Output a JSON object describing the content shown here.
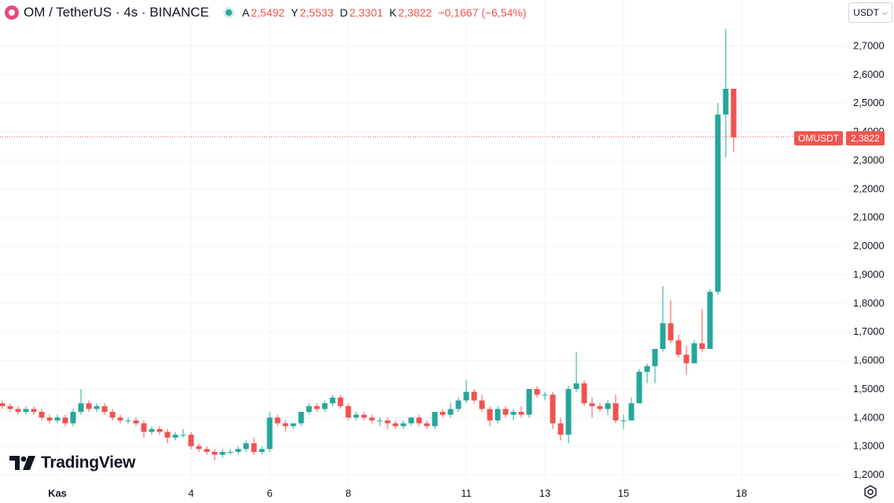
{
  "header": {
    "title": "OM / TetherUS · 4s · BINANCE",
    "ohlc": {
      "open_label": "A",
      "open": "2,5492",
      "high_label": "Y",
      "high": "2,5533",
      "low_label": "D",
      "low": "2,3301",
      "close_label": "K",
      "close": "2,3822",
      "change": "−0,1667 (−6,54%)"
    }
  },
  "currency_button": {
    "label": "USDT",
    "icon": "chevron-down-icon"
  },
  "price_tag": {
    "symbol": "OMUSDT",
    "value": "2,3822"
  },
  "branding": {
    "logo_text": "TradingView"
  },
  "colors": {
    "up": "#26a69a",
    "down": "#ef5350",
    "grid": "#f0f3fa",
    "text": "#131722"
  },
  "chart_data": {
    "type": "candlestick",
    "ylim": [
      1.17,
      2.8
    ],
    "last_price": 2.3822,
    "y_ticks": [
      {
        "value": 2.7,
        "label": "2,7000"
      },
      {
        "value": 2.6,
        "label": "2,6000"
      },
      {
        "value": 2.5,
        "label": "2,5000"
      },
      {
        "value": 2.4,
        "label": "2,4000"
      },
      {
        "value": 2.3,
        "label": "2,3000"
      },
      {
        "value": 2.2,
        "label": "2,2000"
      },
      {
        "value": 2.1,
        "label": "2,1000"
      },
      {
        "value": 2.0,
        "label": "2,0000"
      },
      {
        "value": 1.9,
        "label": "1,9000"
      },
      {
        "value": 1.8,
        "label": "1,8000"
      },
      {
        "value": 1.7,
        "label": "1,7000"
      },
      {
        "value": 1.6,
        "label": "1,6000"
      },
      {
        "value": 1.5,
        "label": "1,5000"
      },
      {
        "value": 1.4,
        "label": "1,4000"
      },
      {
        "value": 1.3,
        "label": "1,3000"
      },
      {
        "value": 1.2,
        "label": "1,2000"
      }
    ],
    "x_ticks": [
      {
        "index": 7,
        "label": "Kas"
      },
      {
        "index": 24,
        "label": "4"
      },
      {
        "index": 34,
        "label": "6"
      },
      {
        "index": 44,
        "label": "8"
      },
      {
        "index": 59,
        "label": "11"
      },
      {
        "index": 69,
        "label": "13"
      },
      {
        "index": 79,
        "label": "15"
      },
      {
        "index": 94,
        "label": "18"
      }
    ],
    "candles": [
      [
        1.45,
        1.46,
        1.43,
        1.44
      ],
      [
        1.44,
        1.45,
        1.42,
        1.43
      ],
      [
        1.43,
        1.44,
        1.41,
        1.42
      ],
      [
        1.42,
        1.44,
        1.41,
        1.43
      ],
      [
        1.43,
        1.44,
        1.41,
        1.42
      ],
      [
        1.42,
        1.43,
        1.39,
        1.4
      ],
      [
        1.4,
        1.41,
        1.38,
        1.39
      ],
      [
        1.39,
        1.41,
        1.38,
        1.4
      ],
      [
        1.4,
        1.41,
        1.37,
        1.38
      ],
      [
        1.38,
        1.43,
        1.37,
        1.42
      ],
      [
        1.42,
        1.5,
        1.41,
        1.45
      ],
      [
        1.45,
        1.46,
        1.42,
        1.43
      ],
      [
        1.43,
        1.45,
        1.42,
        1.44
      ],
      [
        1.44,
        1.45,
        1.41,
        1.42
      ],
      [
        1.42,
        1.43,
        1.39,
        1.4
      ],
      [
        1.4,
        1.41,
        1.38,
        1.39
      ],
      [
        1.39,
        1.4,
        1.38,
        1.39
      ],
      [
        1.39,
        1.4,
        1.37,
        1.38
      ],
      [
        1.38,
        1.39,
        1.33,
        1.35
      ],
      [
        1.35,
        1.37,
        1.34,
        1.36
      ],
      [
        1.36,
        1.37,
        1.34,
        1.35
      ],
      [
        1.35,
        1.36,
        1.31,
        1.33
      ],
      [
        1.33,
        1.35,
        1.32,
        1.34
      ],
      [
        1.34,
        1.36,
        1.33,
        1.34
      ],
      [
        1.34,
        1.35,
        1.29,
        1.3
      ],
      [
        1.3,
        1.31,
        1.28,
        1.29
      ],
      [
        1.29,
        1.3,
        1.27,
        1.28
      ],
      [
        1.28,
        1.29,
        1.25,
        1.27
      ],
      [
        1.27,
        1.29,
        1.26,
        1.28
      ],
      [
        1.28,
        1.29,
        1.27,
        1.28
      ],
      [
        1.28,
        1.3,
        1.27,
        1.29
      ],
      [
        1.29,
        1.32,
        1.28,
        1.31
      ],
      [
        1.31,
        1.33,
        1.27,
        1.28
      ],
      [
        1.28,
        1.3,
        1.27,
        1.29
      ],
      [
        1.29,
        1.42,
        1.28,
        1.4
      ],
      [
        1.4,
        1.41,
        1.37,
        1.38
      ],
      [
        1.38,
        1.39,
        1.35,
        1.37
      ],
      [
        1.37,
        1.38,
        1.36,
        1.38
      ],
      [
        1.38,
        1.42,
        1.37,
        1.42
      ],
      [
        1.42,
        1.45,
        1.41,
        1.44
      ],
      [
        1.44,
        1.45,
        1.42,
        1.43
      ],
      [
        1.43,
        1.46,
        1.42,
        1.45
      ],
      [
        1.45,
        1.48,
        1.44,
        1.47
      ],
      [
        1.47,
        1.48,
        1.43,
        1.44
      ],
      [
        1.44,
        1.45,
        1.39,
        1.4
      ],
      [
        1.4,
        1.42,
        1.39,
        1.41
      ],
      [
        1.41,
        1.42,
        1.39,
        1.4
      ],
      [
        1.4,
        1.41,
        1.38,
        1.39
      ],
      [
        1.39,
        1.4,
        1.37,
        1.39
      ],
      [
        1.39,
        1.4,
        1.36,
        1.38
      ],
      [
        1.38,
        1.39,
        1.36,
        1.37
      ],
      [
        1.37,
        1.39,
        1.36,
        1.38
      ],
      [
        1.38,
        1.4,
        1.37,
        1.4
      ],
      [
        1.4,
        1.41,
        1.37,
        1.38
      ],
      [
        1.38,
        1.39,
        1.36,
        1.37
      ],
      [
        1.37,
        1.42,
        1.36,
        1.42
      ],
      [
        1.42,
        1.43,
        1.4,
        1.41
      ],
      [
        1.41,
        1.45,
        1.4,
        1.43
      ],
      [
        1.43,
        1.47,
        1.42,
        1.46
      ],
      [
        1.46,
        1.53,
        1.45,
        1.49
      ],
      [
        1.49,
        1.5,
        1.45,
        1.46
      ],
      [
        1.46,
        1.48,
        1.42,
        1.43
      ],
      [
        1.43,
        1.44,
        1.37,
        1.39
      ],
      [
        1.39,
        1.44,
        1.38,
        1.43
      ],
      [
        1.43,
        1.44,
        1.4,
        1.41
      ],
      [
        1.41,
        1.43,
        1.39,
        1.42
      ],
      [
        1.42,
        1.44,
        1.4,
        1.41
      ],
      [
        1.41,
        1.5,
        1.4,
        1.5
      ],
      [
        1.5,
        1.51,
        1.47,
        1.48
      ],
      [
        1.48,
        1.49,
        1.46,
        1.48
      ],
      [
        1.48,
        1.49,
        1.36,
        1.38
      ],
      [
        1.38,
        1.4,
        1.32,
        1.34
      ],
      [
        1.34,
        1.51,
        1.31,
        1.5
      ],
      [
        1.5,
        1.63,
        1.49,
        1.52
      ],
      [
        1.52,
        1.53,
        1.44,
        1.45
      ],
      [
        1.45,
        1.47,
        1.4,
        1.44
      ],
      [
        1.44,
        1.45,
        1.42,
        1.43
      ],
      [
        1.43,
        1.46,
        1.41,
        1.45
      ],
      [
        1.45,
        1.48,
        1.38,
        1.39
      ],
      [
        1.39,
        1.41,
        1.36,
        1.39
      ],
      [
        1.39,
        1.47,
        1.39,
        1.45
      ],
      [
        1.45,
        1.57,
        1.45,
        1.56
      ],
      [
        1.56,
        1.59,
        1.52,
        1.58
      ],
      [
        1.58,
        1.64,
        1.52,
        1.64
      ],
      [
        1.64,
        1.86,
        1.63,
        1.73
      ],
      [
        1.73,
        1.81,
        1.66,
        1.67
      ],
      [
        1.67,
        1.69,
        1.61,
        1.62
      ],
      [
        1.62,
        1.65,
        1.55,
        1.59
      ],
      [
        1.59,
        1.67,
        1.59,
        1.66
      ],
      [
        1.66,
        1.78,
        1.63,
        1.64
      ],
      [
        1.64,
        1.85,
        1.64,
        1.84
      ],
      [
        1.84,
        2.5,
        1.83,
        2.46
      ],
      [
        2.46,
        2.76,
        2.31,
        2.55
      ],
      [
        2.55,
        2.55,
        2.33,
        2.38
      ]
    ]
  }
}
